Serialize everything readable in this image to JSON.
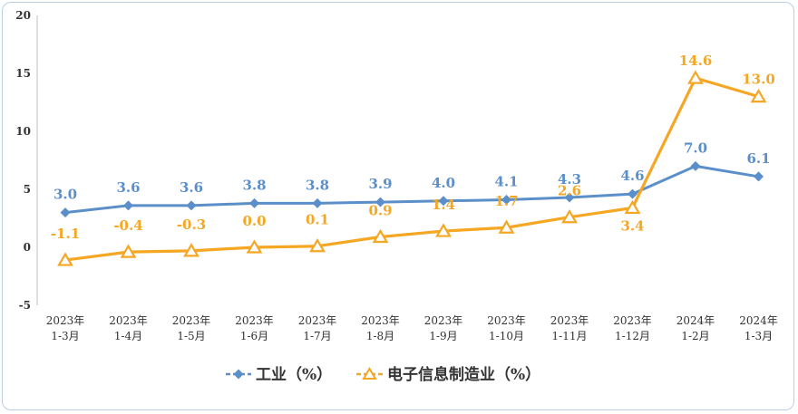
{
  "chart_data": {
    "type": "line",
    "categories": [
      [
        "2023年",
        "1-3月"
      ],
      [
        "2023年",
        "1-4月"
      ],
      [
        "2023年",
        "1-5月"
      ],
      [
        "2023年",
        "1-6月"
      ],
      [
        "2023年",
        "1-7月"
      ],
      [
        "2023年",
        "1-8月"
      ],
      [
        "2023年",
        "1-9月"
      ],
      [
        "2023年",
        "1-10月"
      ],
      [
        "2023年",
        "1-11月"
      ],
      [
        "2023年",
        "1-12月"
      ],
      [
        "2024年",
        "1-2月"
      ],
      [
        "2024年",
        "1-3月"
      ]
    ],
    "series": [
      {
        "name": "工业（%）",
        "color": "#5b8fca",
        "marker": "diamond",
        "values": [
          3.0,
          3.6,
          3.6,
          3.8,
          3.8,
          3.9,
          4.0,
          4.1,
          4.3,
          4.6,
          7.0,
          6.1
        ],
        "labels": [
          "3.0",
          "3.6",
          "3.6",
          "3.8",
          "3.8",
          "3.9",
          "4.0",
          "4.1",
          "4.3",
          "4.6",
          "7.0",
          "6.1"
        ]
      },
      {
        "name": "电子信息制造业（%）",
        "color": "#f5a623",
        "marker": "triangle",
        "values": [
          -1.1,
          -0.4,
          -0.3,
          0.0,
          0.1,
          0.9,
          1.4,
          1.7,
          2.6,
          3.4,
          14.6,
          13.0
        ],
        "labels": [
          "-1.1",
          "-0.4",
          "-0.3",
          "0.0",
          "0.1",
          "0.9",
          "1.4",
          "1.7",
          "2.6",
          "3.4",
          "14.6",
          "13.0"
        ]
      }
    ],
    "ylim": [
      -5,
      20
    ],
    "yticks": [
      "-5",
      "0",
      "5",
      "10",
      "15",
      "20"
    ],
    "grid": false,
    "legend_position": "bottom"
  }
}
